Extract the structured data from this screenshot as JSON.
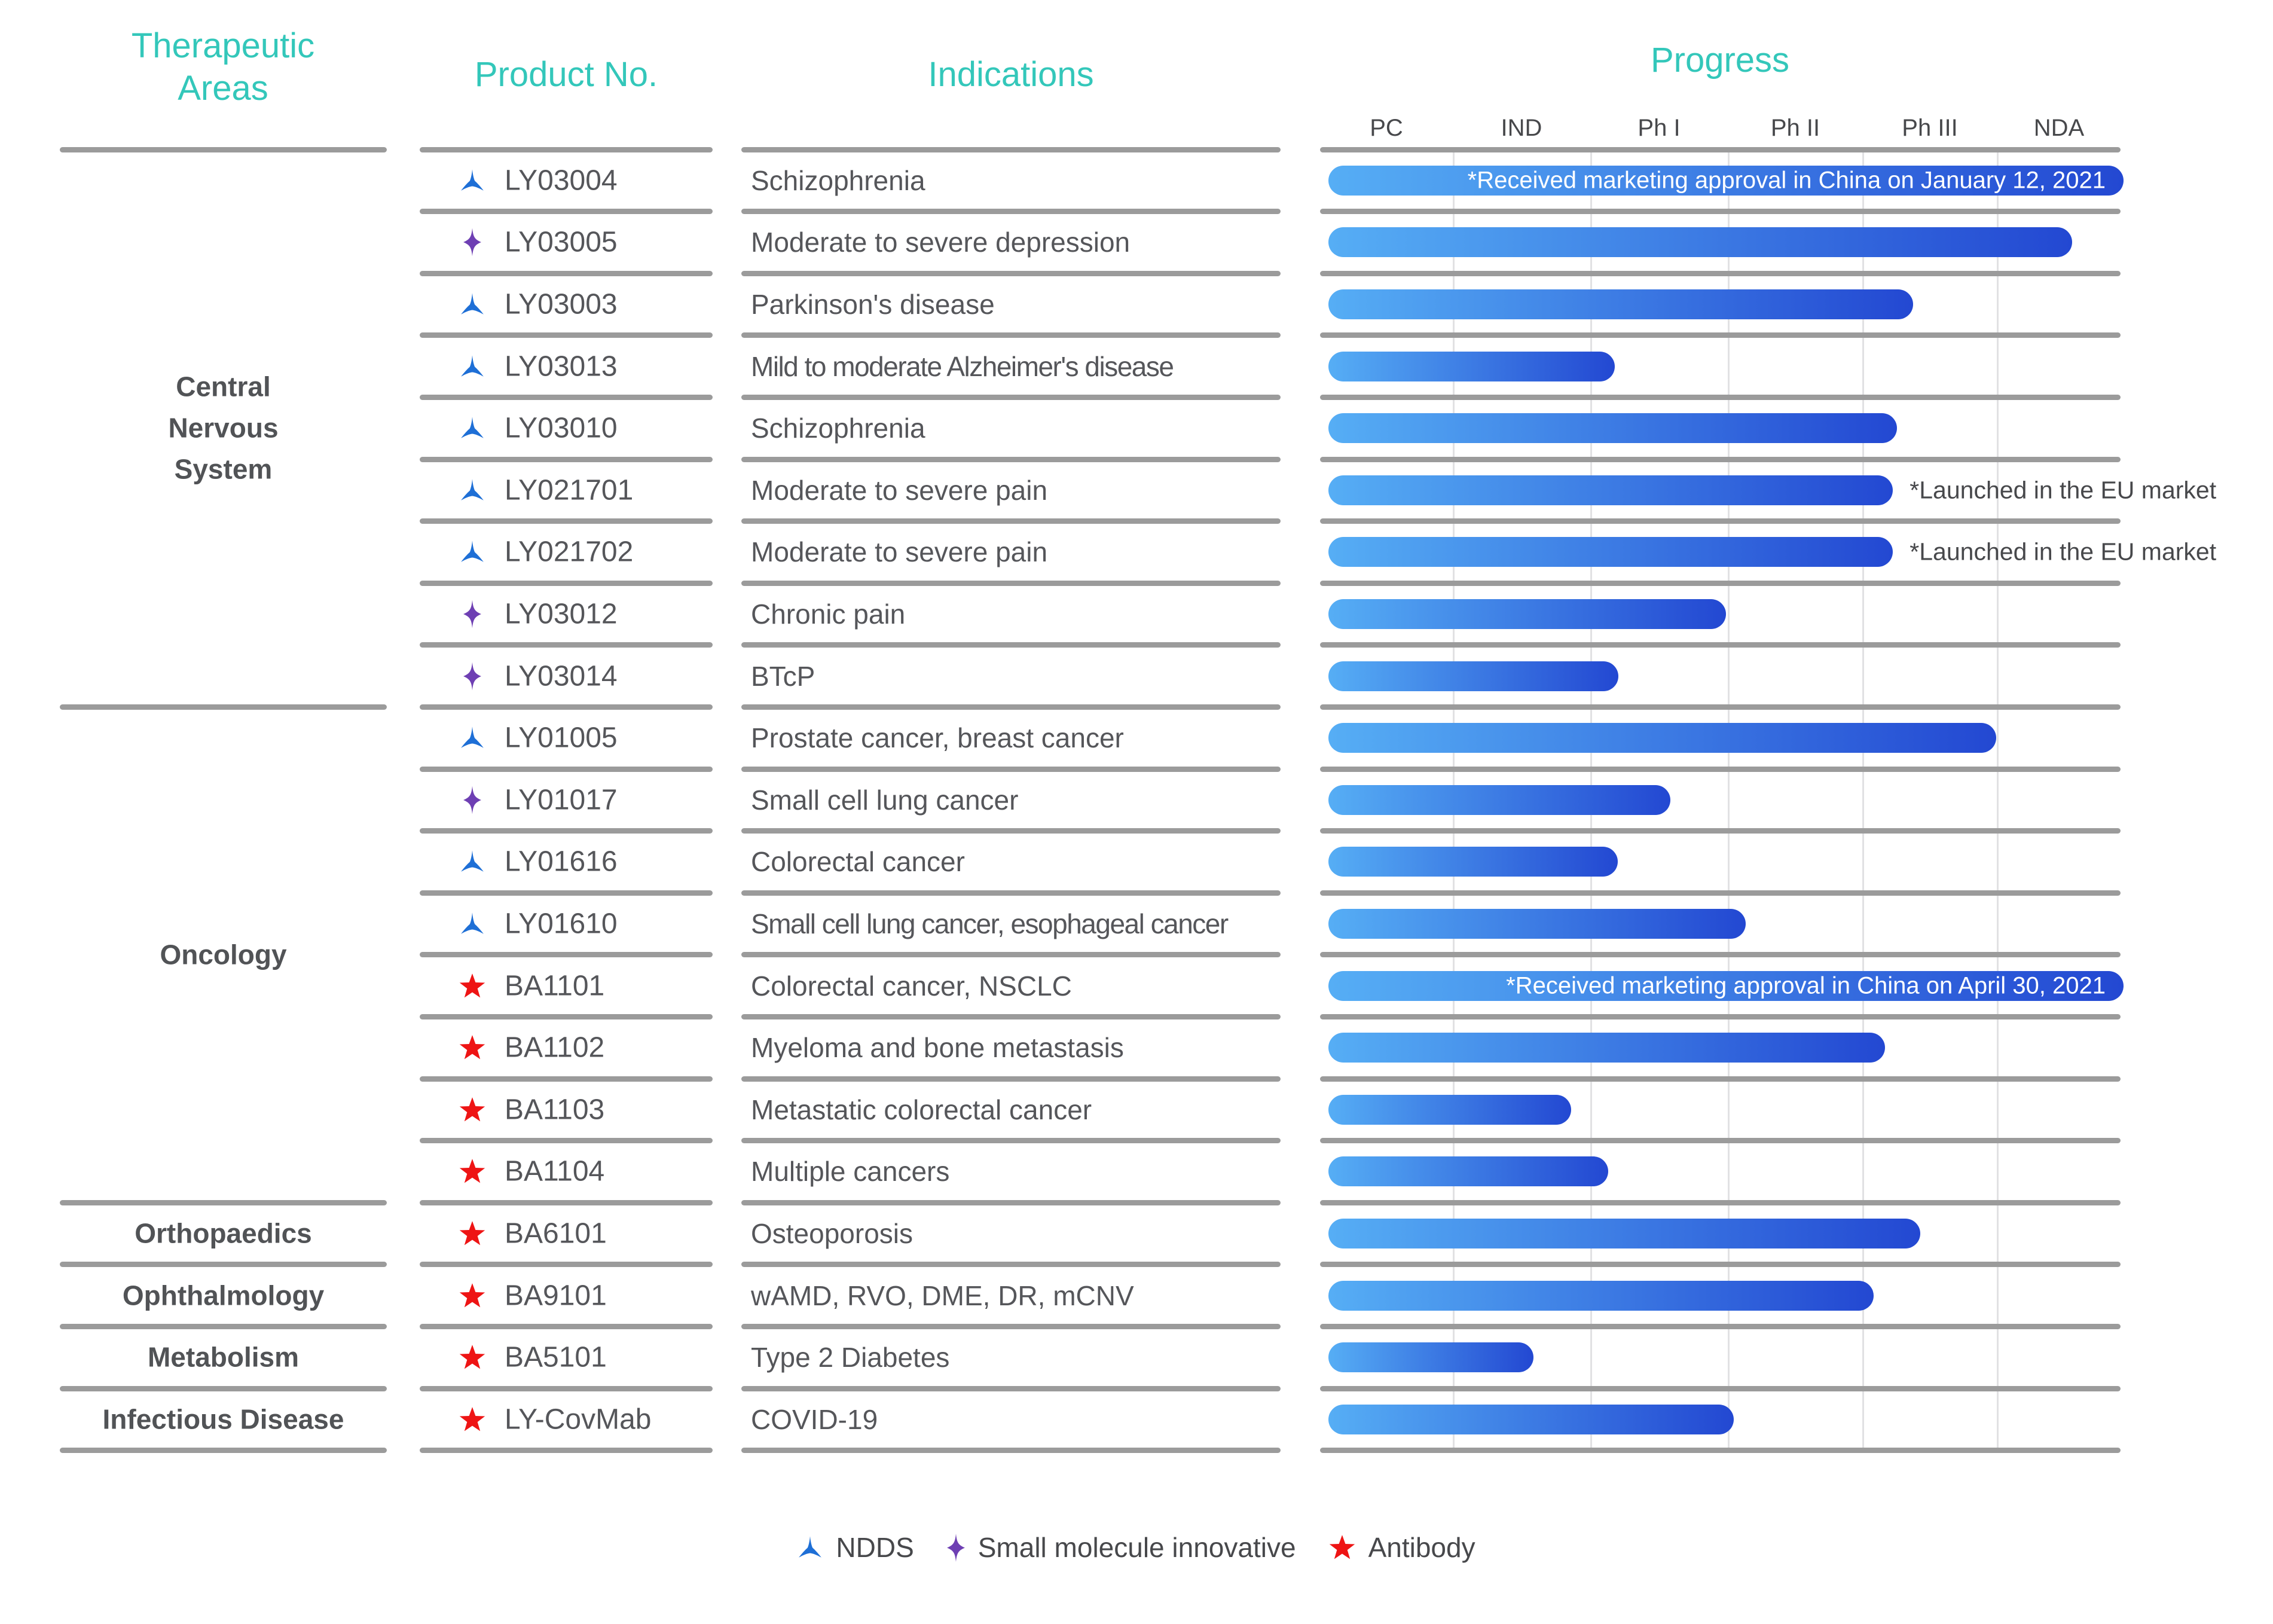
{
  "columns": {
    "therapeutic_areas": "Therapeutic Areas",
    "product_no": "Product No.",
    "indications": "Indications",
    "progress": "Progress"
  },
  "phases": [
    "PC",
    "IND",
    "Ph I",
    "Ph II",
    "Ph III",
    "NDA"
  ],
  "groups": [
    {
      "label": "Central Nervous System",
      "row_span": 9
    },
    {
      "label": "Oncology",
      "row_span": 8
    },
    {
      "label": "Orthopaedics",
      "row_span": 1
    },
    {
      "label": "Ophthalmology",
      "row_span": 1
    },
    {
      "label": "Metabolism",
      "row_span": 1
    },
    {
      "label": "Infectious Disease",
      "row_span": 1
    }
  ],
  "rows": [
    {
      "product": "LY03004",
      "icon": "ndds",
      "indication": "Schizophrenia",
      "progress_pct": 100,
      "note_inside": "*Received marketing  approval in China  on January 12, 2021",
      "note_right": null
    },
    {
      "product": "LY03005",
      "icon": "small-molecule",
      "indication": "Moderate to severe depression",
      "progress_pct": 93.5,
      "note_inside": null,
      "note_right": null
    },
    {
      "product": "LY03003",
      "icon": "ndds",
      "indication": "Parkinson's disease",
      "progress_pct": 73.5,
      "note_inside": null,
      "note_right": null
    },
    {
      "product": "LY03013",
      "icon": "ndds",
      "indication": "Mild to moderate Alzheimer's disease",
      "progress_pct": 36.0,
      "note_inside": null,
      "note_right": null
    },
    {
      "product": "LY03010",
      "icon": "ndds",
      "indication": "Schizophrenia",
      "progress_pct": 71.5,
      "note_inside": null,
      "note_right": null
    },
    {
      "product": "LY021701",
      "icon": "ndds",
      "indication": "Moderate to severe pain",
      "progress_pct": 71.0,
      "note_inside": null,
      "note_right": "*Launched in the EU market"
    },
    {
      "product": "LY021702",
      "icon": "ndds",
      "indication": "Moderate to severe pain",
      "progress_pct": 71.0,
      "note_inside": null,
      "note_right": "*Launched in the EU market"
    },
    {
      "product": "LY03012",
      "icon": "small-molecule",
      "indication": "Chronic pain",
      "progress_pct": 50.0,
      "note_inside": null,
      "note_right": null
    },
    {
      "product": "LY03014",
      "icon": "small-molecule",
      "indication": "BTcP",
      "progress_pct": 36.5,
      "note_inside": null,
      "note_right": null
    },
    {
      "product": "LY01005",
      "icon": "ndds",
      "indication": "Prostate cancer, breast cancer",
      "progress_pct": 84.0,
      "note_inside": null,
      "note_right": null
    },
    {
      "product": "LY01017",
      "icon": "small-molecule",
      "indication": "Small cell lung cancer",
      "progress_pct": 43.0,
      "note_inside": null,
      "note_right": null
    },
    {
      "product": "LY01616",
      "icon": "ndds",
      "indication": "Colorectal cancer",
      "progress_pct": 36.4,
      "note_inside": null,
      "note_right": null
    },
    {
      "product": "LY01610",
      "icon": "ndds",
      "indication": "Small cell lung cancer, esophageal cancer",
      "progress_pct": 52.5,
      "note_inside": null,
      "note_right": null
    },
    {
      "product": "BA1101",
      "icon": "antibody",
      "indication": "Colorectal cancer, NSCLC",
      "progress_pct": 100,
      "note_inside": "*Received marketing  approval in China  on April 30, 2021",
      "note_right": null
    },
    {
      "product": "BA1102",
      "icon": "antibody",
      "indication": "Myeloma and bone metastasis",
      "progress_pct": 70.0,
      "note_inside": null,
      "note_right": null
    },
    {
      "product": "BA1103",
      "icon": "antibody",
      "indication": "Metastatic colorectal cancer",
      "progress_pct": 30.5,
      "note_inside": null,
      "note_right": null
    },
    {
      "product": "BA1104",
      "icon": "antibody",
      "indication": "Multiple cancers",
      "progress_pct": 35.2,
      "note_inside": null,
      "note_right": null
    },
    {
      "product": "BA6101",
      "icon": "antibody",
      "indication": "Osteoporosis",
      "progress_pct": 74.4,
      "note_inside": null,
      "note_right": null
    },
    {
      "product": "BA9101",
      "icon": "antibody",
      "indication": "wAMD, RVO, DME, DR, mCNV",
      "progress_pct": 68.6,
      "note_inside": null,
      "note_right": null
    },
    {
      "product": "BA5101",
      "icon": "antibody",
      "indication": "Type 2 Diabetes",
      "progress_pct": 25.8,
      "note_inside": null,
      "note_right": null
    },
    {
      "product": "LY-CovMab",
      "icon": "antibody",
      "indication": "COVID-19",
      "progress_pct": 51.0,
      "note_inside": null,
      "note_right": null
    }
  ],
  "legend": {
    "items": [
      {
        "icon": "ndds",
        "label": "NDDS"
      },
      {
        "icon": "small-molecule",
        "label": "Small molecule  innovative"
      },
      {
        "icon": "antibody",
        "label": "Antibody"
      }
    ]
  },
  "colors": {
    "accent_teal": "#33C7BA",
    "bar_gradient_start": "#56AEF5",
    "bar_gradient_end": "#2348D2",
    "ndds": "#1E6FD6",
    "small_molecule": "#6E3FB3",
    "antibody": "#EE1414",
    "text_gray": "#55565A",
    "annotation_gray": "#47484B",
    "rule_gray": "#9B9B9B",
    "grid_gray": "#E1E1E3"
  },
  "chart_data": {
    "type": "bar",
    "title": "Progress",
    "orientation": "horizontal",
    "x_categories_phases": [
      "PC",
      "IND",
      "Ph I",
      "Ph II",
      "Ph III",
      "NDA"
    ],
    "xlim_percent": [
      0,
      100
    ],
    "grid": true,
    "items": [
      {
        "area": "Central Nervous System",
        "product": "LY03004",
        "type": "NDDS",
        "indication": "Schizophrenia",
        "progress_percent": 100,
        "phase_reached": "Approved (NDA complete)",
        "annotation": "*Received marketing  approval in China  on January 12, 2021"
      },
      {
        "area": "Central Nervous System",
        "product": "LY03005",
        "type": "Small molecule innovative",
        "indication": "Moderate to severe depression",
        "progress_percent": 93.5,
        "phase_reached": "NDA",
        "annotation": null
      },
      {
        "area": "Central Nervous System",
        "product": "LY03003",
        "type": "NDDS",
        "indication": "Parkinson's disease",
        "progress_percent": 73.5,
        "phase_reached": "Ph III",
        "annotation": null
      },
      {
        "area": "Central Nervous System",
        "product": "LY03013",
        "type": "NDDS",
        "indication": "Mild to moderate Alzheimer's disease",
        "progress_percent": 36.0,
        "phase_reached": "Ph I",
        "annotation": null
      },
      {
        "area": "Central Nervous System",
        "product": "LY03010",
        "type": "NDDS",
        "indication": "Schizophrenia",
        "progress_percent": 71.5,
        "phase_reached": "Ph III",
        "annotation": null
      },
      {
        "area": "Central Nervous System",
        "product": "LY021701",
        "type": "NDDS",
        "indication": "Moderate to severe pain",
        "progress_percent": 71.0,
        "phase_reached": "Ph III",
        "annotation": "*Launched in the EU market"
      },
      {
        "area": "Central Nervous System",
        "product": "LY021702",
        "type": "NDDS",
        "indication": "Moderate to severe pain",
        "progress_percent": 71.0,
        "phase_reached": "Ph III",
        "annotation": "*Launched in the EU market"
      },
      {
        "area": "Central Nervous System",
        "product": "LY03012",
        "type": "Small molecule innovative",
        "indication": "Chronic pain",
        "progress_percent": 50.0,
        "phase_reached": "Ph I completed",
        "annotation": null
      },
      {
        "area": "Central Nervous System",
        "product": "LY03014",
        "type": "Small molecule innovative",
        "indication": "BTcP",
        "progress_percent": 36.5,
        "phase_reached": "Ph I",
        "annotation": null
      },
      {
        "area": "Oncology",
        "product": "LY01005",
        "type": "NDDS",
        "indication": "Prostate cancer, breast cancer",
        "progress_percent": 84.0,
        "phase_reached": "NDA",
        "annotation": null
      },
      {
        "area": "Oncology",
        "product": "LY01017",
        "type": "Small molecule innovative",
        "indication": "Small cell lung cancer",
        "progress_percent": 43.0,
        "phase_reached": "Ph I",
        "annotation": null
      },
      {
        "area": "Oncology",
        "product": "LY01616",
        "type": "NDDS",
        "indication": "Colorectal cancer",
        "progress_percent": 36.4,
        "phase_reached": "Ph I",
        "annotation": null
      },
      {
        "area": "Oncology",
        "product": "LY01610",
        "type": "NDDS",
        "indication": "Small cell lung cancer, esophageal cancer",
        "progress_percent": 52.5,
        "phase_reached": "Ph II",
        "annotation": null
      },
      {
        "area": "Oncology",
        "product": "BA1101",
        "type": "Antibody",
        "indication": "Colorectal cancer, NSCLC",
        "progress_percent": 100,
        "phase_reached": "Approved (NDA complete)",
        "annotation": "*Received marketing  approval in China  on April 30, 2021"
      },
      {
        "area": "Oncology",
        "product": "BA1102",
        "type": "Antibody",
        "indication": "Myeloma and bone metastasis",
        "progress_percent": 70.0,
        "phase_reached": "Ph III",
        "annotation": null
      },
      {
        "area": "Oncology",
        "product": "BA1103",
        "type": "Antibody",
        "indication": "Metastatic colorectal cancer",
        "progress_percent": 30.5,
        "phase_reached": "IND",
        "annotation": null
      },
      {
        "area": "Oncology",
        "product": "BA1104",
        "type": "Antibody",
        "indication": "Multiple cancers",
        "progress_percent": 35.2,
        "phase_reached": "Ph I",
        "annotation": null
      },
      {
        "area": "Orthopaedics",
        "product": "BA6101",
        "type": "Antibody",
        "indication": "Osteoporosis",
        "progress_percent": 74.4,
        "phase_reached": "Ph III",
        "annotation": null
      },
      {
        "area": "Ophthalmology",
        "product": "BA9101",
        "type": "Antibody",
        "indication": "wAMD, RVO, DME, DR, mCNV",
        "progress_percent": 68.6,
        "phase_reached": "Ph III",
        "annotation": null
      },
      {
        "area": "Metabolism",
        "product": "BA5101",
        "type": "Antibody",
        "indication": "Type 2 Diabetes",
        "progress_percent": 25.8,
        "phase_reached": "IND",
        "annotation": null
      },
      {
        "area": "Infectious Disease",
        "product": "LY-CovMab",
        "type": "Antibody",
        "indication": "COVID-19",
        "progress_percent": 51.0,
        "phase_reached": "Ph II",
        "annotation": null
      }
    ]
  }
}
